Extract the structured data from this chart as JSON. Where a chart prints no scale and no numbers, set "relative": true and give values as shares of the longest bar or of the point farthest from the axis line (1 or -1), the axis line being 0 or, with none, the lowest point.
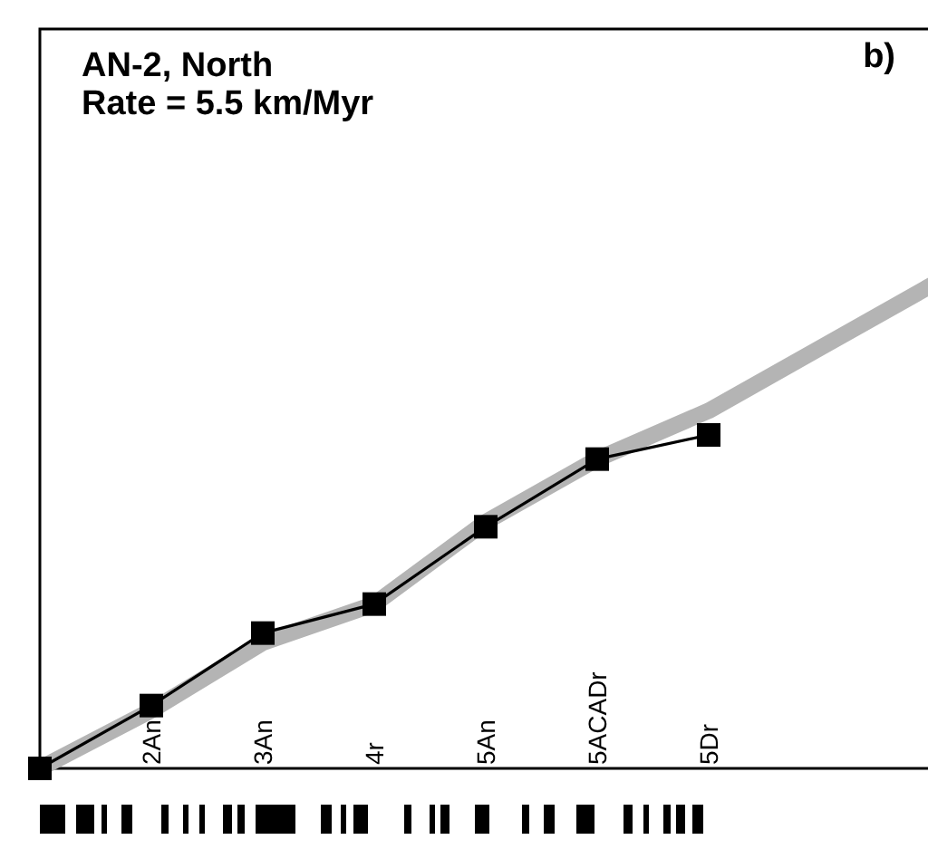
{
  "chart_data": {
    "type": "line",
    "title": "AN-2, North",
    "subtitle": "Rate = 5.5 km/Myr",
    "annotations": [
      "b)"
    ],
    "relative": true,
    "categories": [
      null,
      "2An",
      "3An",
      "4r",
      "5An",
      "5ACADr",
      "5Dr",
      null,
      null
    ],
    "grid": false,
    "series": [
      {
        "color": "#b4b4b4",
        "values": [
          0,
          0.12,
          0.26,
          0.34,
          0.51,
          0.64,
          0.74,
          0.87,
          1.0
        ],
        "marker": "none"
      },
      {
        "color": "#000000",
        "values": [
          0,
          0.13,
          0.28,
          0.34,
          0.5,
          0.64,
          0.69,
          null,
          null
        ],
        "marker": "square"
      }
    ]
  }
}
